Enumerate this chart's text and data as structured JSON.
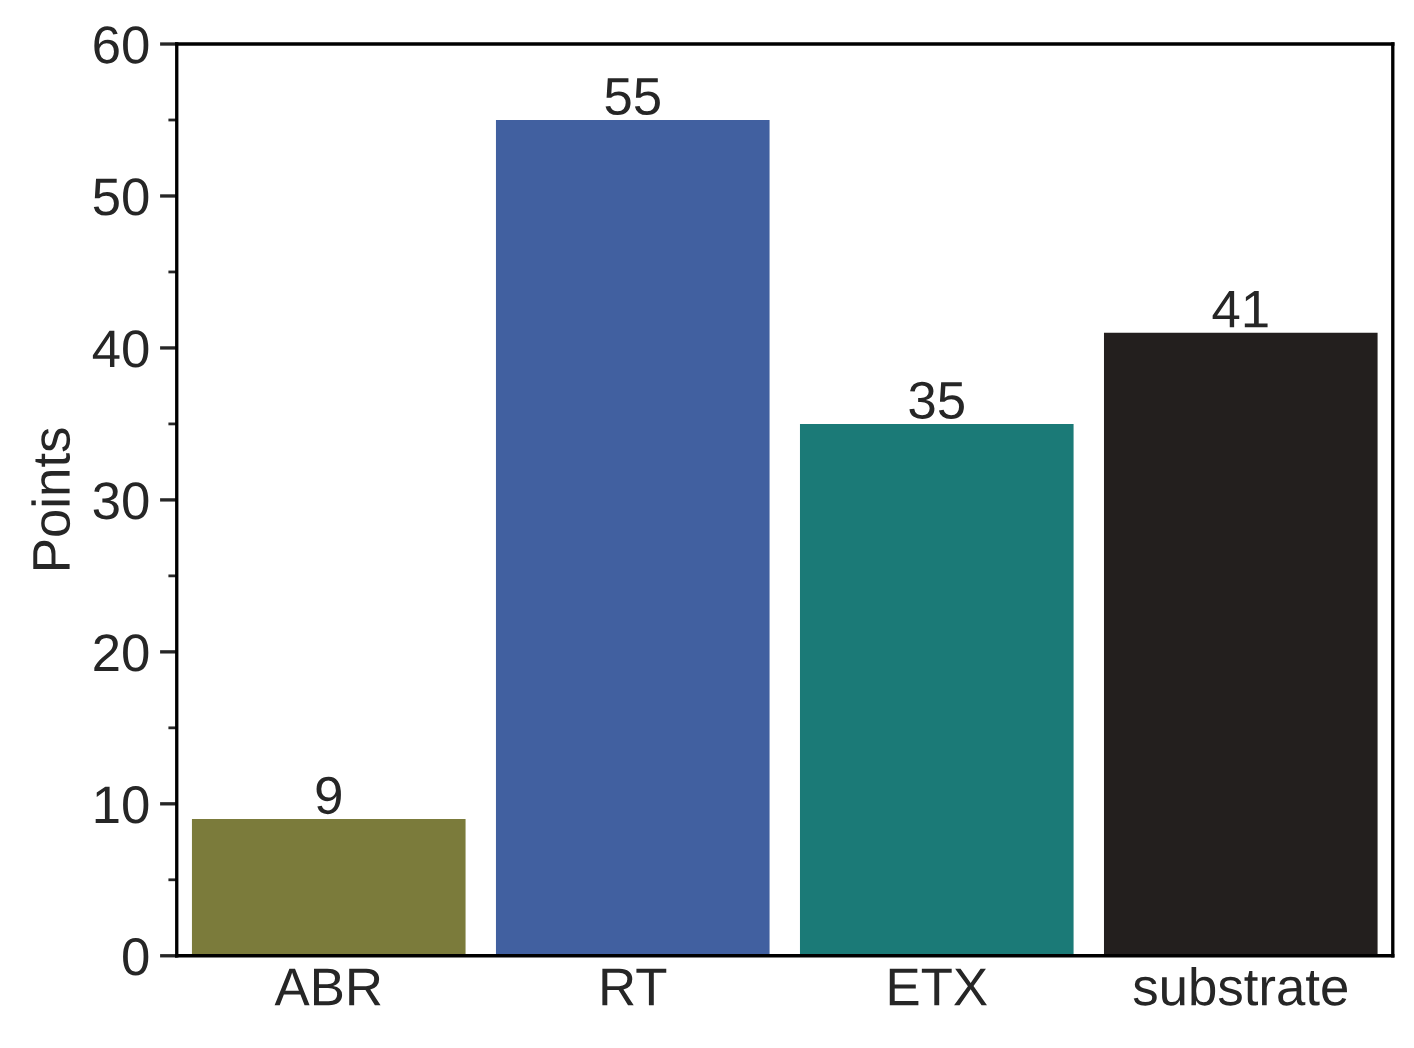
{
  "chart_data": {
    "type": "bar",
    "ylabel": "Points",
    "categories": [
      "ABR",
      "RT",
      "ETX",
      "substrate"
    ],
    "values": [
      9,
      55,
      35,
      41
    ],
    "colors": [
      "#7b7b3b",
      "#4160a0",
      "#1b7a77",
      "#231f1e"
    ],
    "ylim": [
      0,
      60
    ],
    "yticks": [
      0,
      10,
      20,
      30,
      40,
      50,
      60
    ],
    "data_labels": true,
    "grid": false,
    "legend": false
  }
}
